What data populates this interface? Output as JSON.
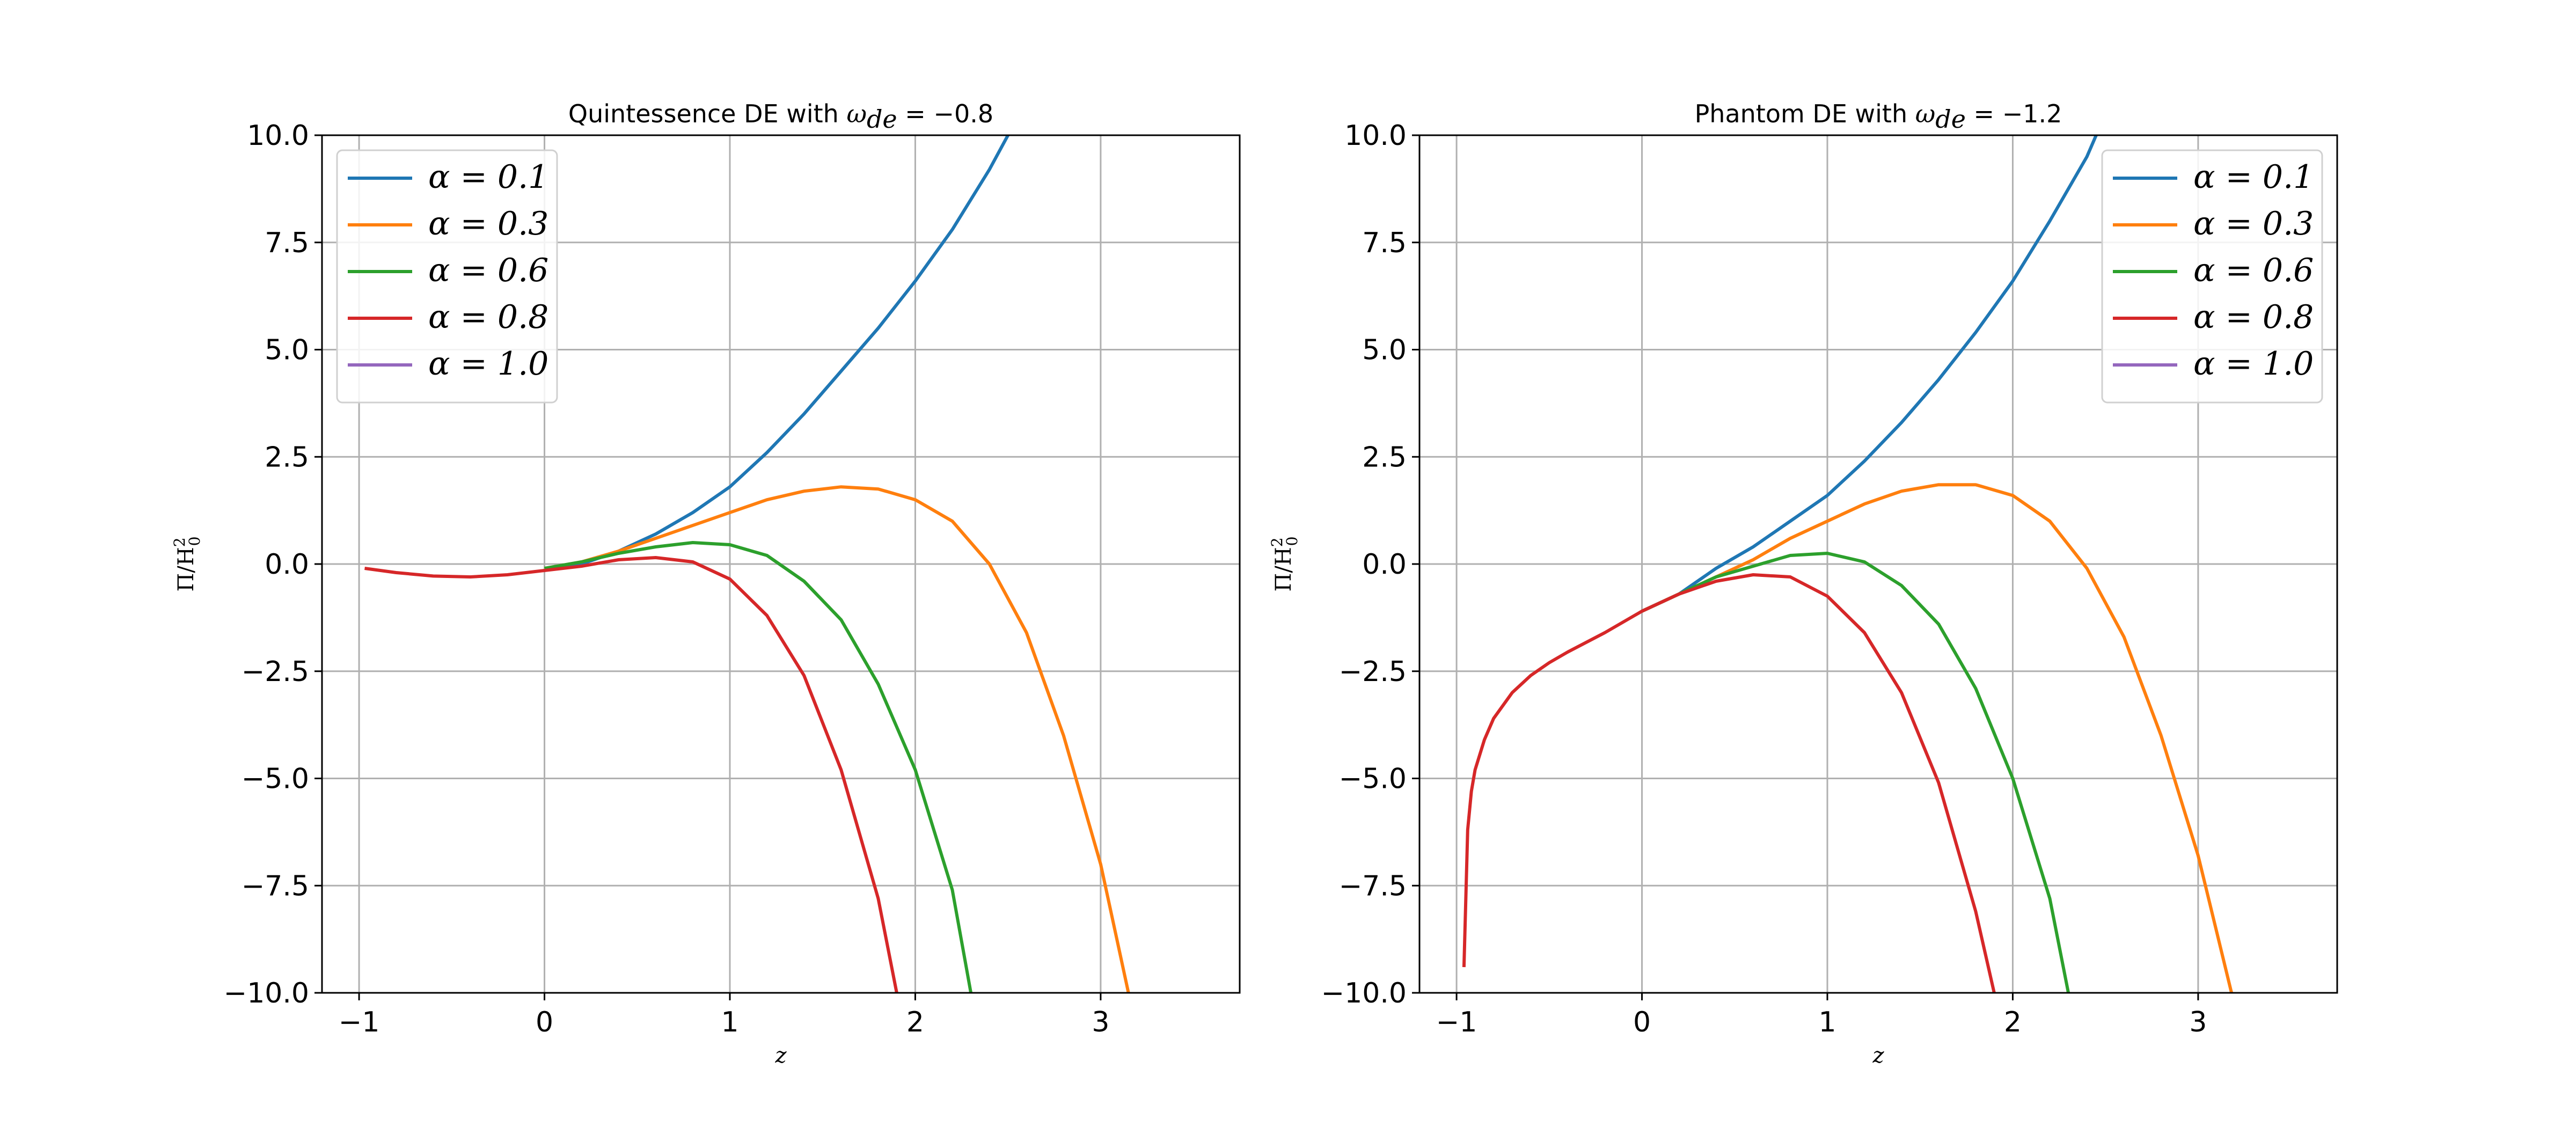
{
  "chart_data": [
    {
      "type": "line",
      "title_prefix": "Quintessence DE with ",
      "title_math": "ω",
      "title_sub": "de",
      "title_suffix": " = −0.8",
      "xlabel": "z",
      "ylabel_main": "Π/H",
      "ylabel_sup": "2",
      "ylabel_sub": "0",
      "xlim": [
        -1.2,
        3.75
      ],
      "ylim": [
        -10,
        10
      ],
      "xticks": [
        -1,
        0,
        1,
        2,
        3
      ],
      "xtick_labels": [
        "−1",
        "0",
        "1",
        "2",
        "3"
      ],
      "yticks": [
        -10,
        -7.5,
        -5,
        -2.5,
        0,
        2.5,
        5,
        7.5,
        10
      ],
      "ytick_labels": [
        "−10.0",
        "−7.5",
        "−5.0",
        "−2.5",
        "0.0",
        "2.5",
        "5.0",
        "7.5",
        "10.0"
      ],
      "grid": true,
      "legend_position": "top-left",
      "series": [
        {
          "name": "α = 0.1",
          "color": "#1f77b4",
          "x": [
            0,
            0.2,
            0.4,
            0.6,
            0.8,
            1.0,
            1.2,
            1.4,
            1.6,
            1.8,
            2.0,
            2.2,
            2.4,
            2.5
          ],
          "y": [
            -0.1,
            0.0,
            0.3,
            0.7,
            1.2,
            1.8,
            2.6,
            3.5,
            4.5,
            5.5,
            6.6,
            7.8,
            9.2,
            10.0
          ]
        },
        {
          "name": "α = 0.3",
          "color": "#ff7f0e",
          "x": [
            0,
            0.2,
            0.4,
            0.6,
            0.8,
            1.0,
            1.2,
            1.4,
            1.6,
            1.8,
            2.0,
            2.2,
            2.4,
            2.6,
            2.8,
            3.0,
            3.15
          ],
          "y": [
            -0.1,
            0.05,
            0.3,
            0.6,
            0.9,
            1.2,
            1.5,
            1.7,
            1.8,
            1.75,
            1.5,
            1.0,
            0.0,
            -1.6,
            -4.0,
            -7.0,
            -10.0
          ]
        },
        {
          "name": "α = 0.6",
          "color": "#2ca02c",
          "x": [
            0,
            0.2,
            0.4,
            0.6,
            0.8,
            1.0,
            1.2,
            1.4,
            1.6,
            1.8,
            2.0,
            2.2,
            2.3
          ],
          "y": [
            -0.1,
            0.05,
            0.25,
            0.4,
            0.5,
            0.45,
            0.2,
            -0.4,
            -1.3,
            -2.8,
            -4.8,
            -7.6,
            -10.0
          ]
        },
        {
          "name": "α = 0.8",
          "color": "#d62728",
          "x": [
            -0.97,
            -0.8,
            -0.6,
            -0.4,
            -0.2,
            0,
            0.2,
            0.4,
            0.6,
            0.8,
            1.0,
            1.2,
            1.4,
            1.6,
            1.8,
            1.9
          ],
          "y": [
            -0.1,
            -0.2,
            -0.28,
            -0.3,
            -0.25,
            -0.15,
            -0.05,
            0.1,
            0.15,
            0.05,
            -0.35,
            -1.2,
            -2.6,
            -4.8,
            -7.8,
            -10.0
          ]
        },
        {
          "name": "α = 1.0",
          "color": "#9467bd",
          "x": [],
          "y": []
        }
      ]
    },
    {
      "type": "line",
      "title_prefix": "Phantom DE with ",
      "title_math": "ω",
      "title_sub": "de",
      "title_suffix": " = −1.2",
      "xlabel": "z",
      "ylabel_main": "Π/H",
      "ylabel_sup": "2",
      "ylabel_sub": "0",
      "xlim": [
        -1.2,
        3.75
      ],
      "ylim": [
        -10,
        10
      ],
      "xticks": [
        -1,
        0,
        1,
        2,
        3
      ],
      "xtick_labels": [
        "−1",
        "0",
        "1",
        "2",
        "3"
      ],
      "yticks": [
        -10,
        -7.5,
        -5,
        -2.5,
        0,
        2.5,
        5,
        7.5,
        10
      ],
      "ytick_labels": [
        "−10.0",
        "−7.5",
        "−5.0",
        "−2.5",
        "0.0",
        "2.5",
        "5.0",
        "7.5",
        "10.0"
      ],
      "grid": true,
      "legend_position": "top-right",
      "series": [
        {
          "name": "α = 0.1",
          "color": "#1f77b4",
          "x": [
            0,
            0.2,
            0.4,
            0.6,
            0.8,
            1.0,
            1.2,
            1.4,
            1.6,
            1.8,
            2.0,
            2.2,
            2.4,
            2.45
          ],
          "y": [
            -1.1,
            -0.7,
            -0.1,
            0.4,
            1.0,
            1.6,
            2.4,
            3.3,
            4.3,
            5.4,
            6.6,
            8.0,
            9.5,
            10.0
          ]
        },
        {
          "name": "α = 0.3",
          "color": "#ff7f0e",
          "x": [
            0,
            0.2,
            0.4,
            0.6,
            0.8,
            1.0,
            1.2,
            1.4,
            1.6,
            1.8,
            2.0,
            2.2,
            2.4,
            2.6,
            2.8,
            3.0,
            3.18
          ],
          "y": [
            -1.1,
            -0.7,
            -0.3,
            0.1,
            0.6,
            1.0,
            1.4,
            1.7,
            1.85,
            1.85,
            1.6,
            1.0,
            -0.1,
            -1.7,
            -4.0,
            -6.8,
            -10.0
          ]
        },
        {
          "name": "α = 0.6",
          "color": "#2ca02c",
          "x": [
            0,
            0.2,
            0.4,
            0.6,
            0.8,
            1.0,
            1.2,
            1.4,
            1.6,
            1.8,
            2.0,
            2.2,
            2.3
          ],
          "y": [
            -1.1,
            -0.7,
            -0.3,
            -0.05,
            0.2,
            0.25,
            0.05,
            -0.5,
            -1.4,
            -2.9,
            -5.0,
            -7.8,
            -10.0
          ]
        },
        {
          "name": "α = 0.8",
          "color": "#d62728",
          "x": [
            -0.96,
            -0.94,
            -0.92,
            -0.9,
            -0.85,
            -0.8,
            -0.7,
            -0.6,
            -0.5,
            -0.4,
            -0.2,
            0,
            0.2,
            0.4,
            0.6,
            0.8,
            1.0,
            1.2,
            1.4,
            1.6,
            1.8,
            1.9
          ],
          "y": [
            -9.4,
            -6.2,
            -5.3,
            -4.8,
            -4.1,
            -3.6,
            -3.0,
            -2.6,
            -2.3,
            -2.05,
            -1.6,
            -1.1,
            -0.7,
            -0.4,
            -0.25,
            -0.3,
            -0.75,
            -1.6,
            -3.0,
            -5.1,
            -8.1,
            -10.0
          ]
        },
        {
          "name": "α = 1.0",
          "color": "#9467bd",
          "x": [],
          "y": []
        }
      ]
    }
  ]
}
